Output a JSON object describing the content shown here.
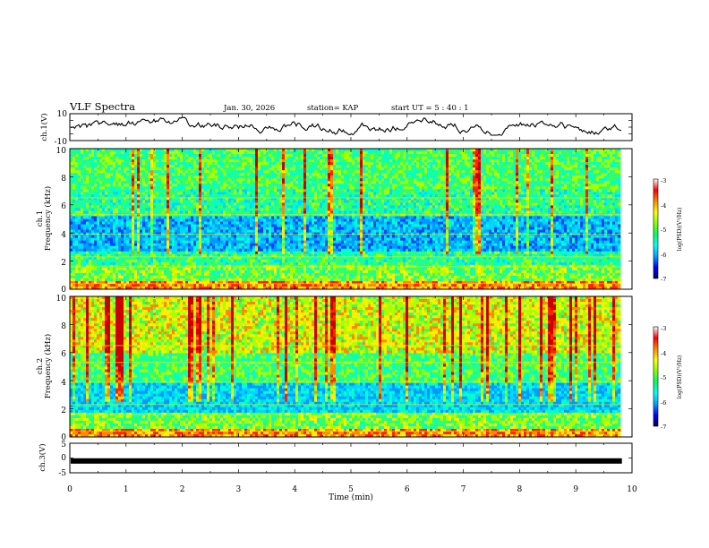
{
  "header": {
    "title": "VLF Spectra",
    "date": "Jan. 30, 2026",
    "station": "station= KAP",
    "start_ut": "start  UT =  5 : 40 : 1"
  },
  "colors": {
    "spectrum_palette": [
      "#000066",
      "#0000cc",
      "#0044ff",
      "#0099ff",
      "#00d5ff",
      "#00ffcc",
      "#33ff66",
      "#aaff00",
      "#ffee00",
      "#ff8800",
      "#ff2200",
      "#cc0000"
    ],
    "colorbar_stops": [
      "#000066",
      "#0000ff",
      "#00a0ff",
      "#00ffff",
      "#00ff66",
      "#88ff00",
      "#ffff00",
      "#ff8800",
      "#ff0000",
      "#ffffff"
    ]
  },
  "chart_data": [
    {
      "type": "line",
      "name": "ch1-waveform",
      "ylabel": "ch.1(V)",
      "ylim": [
        -10,
        10
      ],
      "y_ticks": [
        "10",
        "-10"
      ],
      "x_range": [
        0,
        10
      ],
      "x_end": 9.82,
      "description_values": "noisy voltage trace between about -5 and 8 V"
    },
    {
      "type": "heatmap",
      "name": "ch1-spectrogram",
      "ylabel_line1": "ch.1",
      "ylabel_line2": "Frequency (kHz)",
      "ylim": [
        0,
        10
      ],
      "y_ticks": [
        "0",
        "2",
        "4",
        "6",
        "8",
        "10"
      ],
      "x_range": [
        0,
        10
      ],
      "x_end": 9.82,
      "colorbar": {
        "label": "log(PSD)(V²/Hz)",
        "ticks": [
          "-3",
          "-4",
          "-5",
          "-6",
          "-7"
        ],
        "range": [
          -7,
          -3
        ]
      }
    },
    {
      "type": "heatmap",
      "name": "ch2-spectrogram",
      "ylabel_line1": "ch.2",
      "ylabel_line2": "Frequency (kHz)",
      "ylim": [
        0,
        10
      ],
      "y_ticks": [
        "0",
        "2",
        "4",
        "6",
        "8",
        "10"
      ],
      "x_range": [
        0,
        10
      ],
      "x_end": 9.82,
      "colorbar": {
        "label": "log(PSD)(V²/Hz)",
        "ticks": [
          "-3",
          "-4",
          "-5",
          "-6",
          "-7"
        ],
        "range": [
          -7,
          -3
        ]
      }
    },
    {
      "type": "line",
      "name": "ch3-waveform",
      "ylabel": "ch.3(V)",
      "ylim": [
        -5,
        5
      ],
      "y_ticks": [
        "5",
        "0",
        "-5"
      ],
      "x_range": [
        0,
        10
      ],
      "x_end": 9.82,
      "constant_value": -1.0
    }
  ],
  "x_axis": {
    "label": "Time  (min)",
    "ticks": [
      "0",
      "1",
      "2",
      "3",
      "4",
      "5",
      "6",
      "7",
      "8",
      "9",
      "10"
    ],
    "range": [
      0,
      10
    ]
  }
}
